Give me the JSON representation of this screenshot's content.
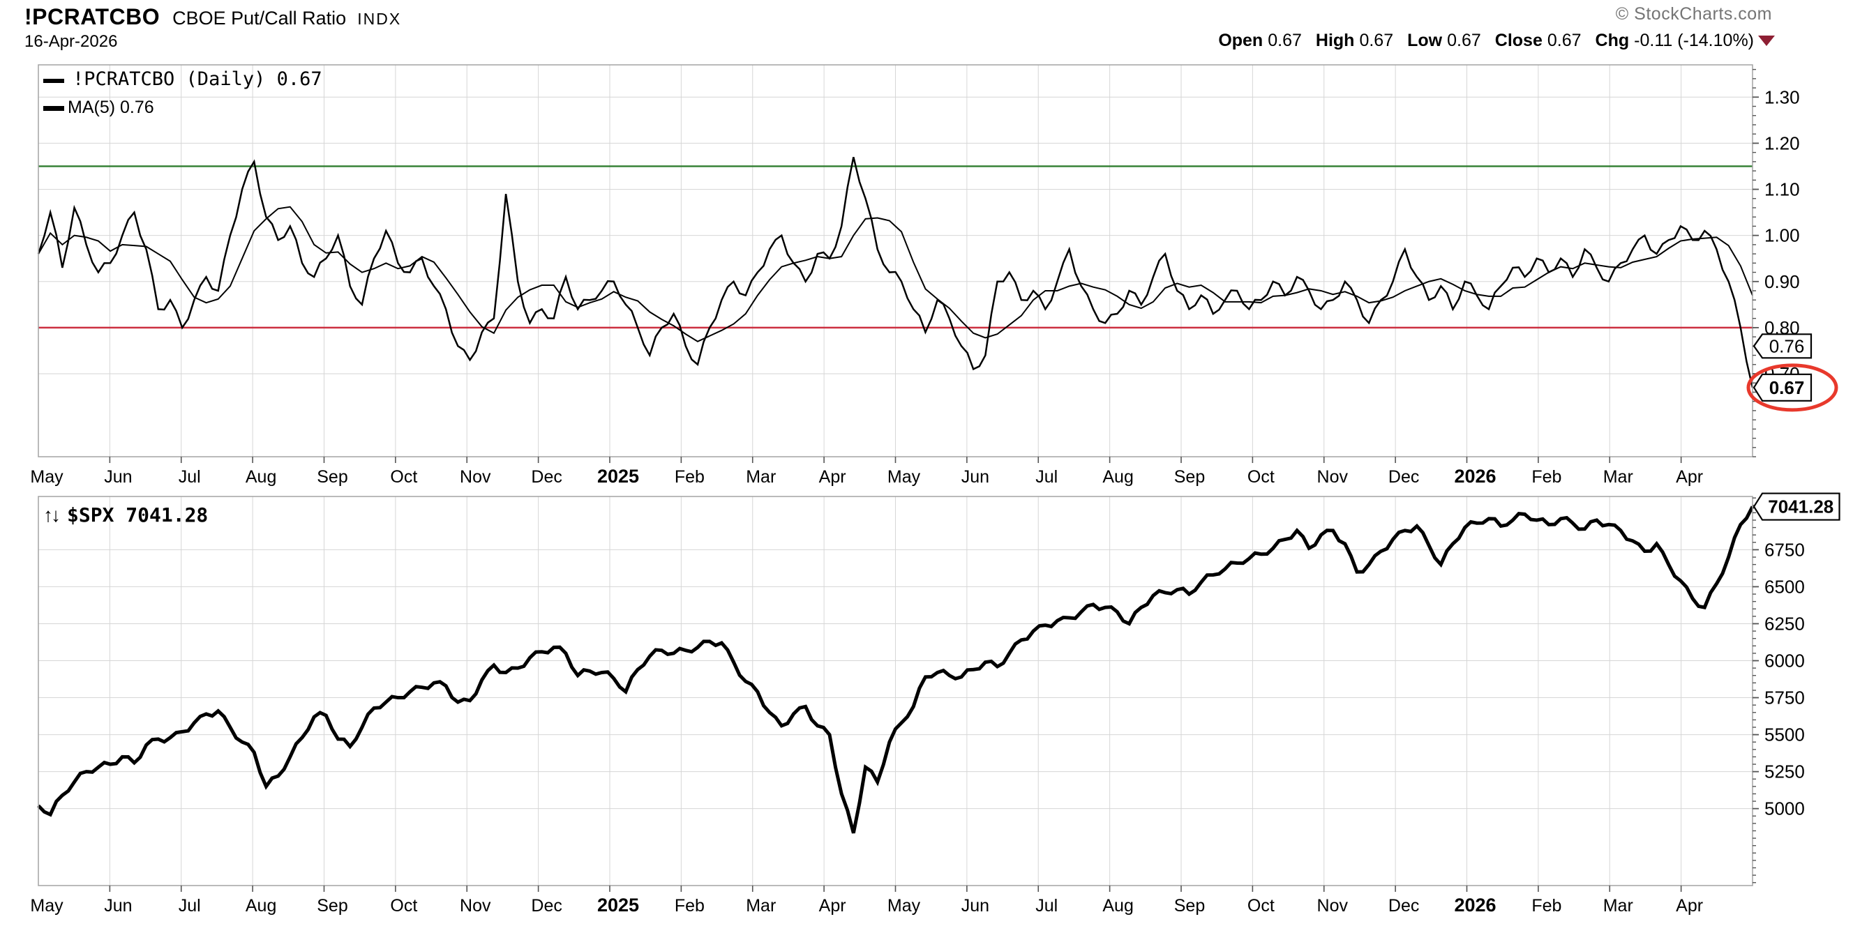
{
  "header": {
    "symbol": "!PCRATCBO",
    "name": "CBOE Put/Call Ratio",
    "exchange": "INDX",
    "date": "16-Apr-2026",
    "watermark": "© StockCharts.com",
    "quote": {
      "open_label": "Open",
      "open_value": "0.67",
      "high_label": "High",
      "high_value": "0.67",
      "low_label": "Low",
      "low_value": "0.67",
      "close_label": "Close",
      "close_value": "0.67",
      "chg_label": "Chg",
      "chg_value": "-0.11 (-14.10%)"
    }
  },
  "colors": {
    "line": "#000000",
    "grid": "#d6d6d6",
    "border": "#a3a3a3",
    "tick": "#555555",
    "overbought_line": "#2e7d2e",
    "oversold_line": "#cc2f3f",
    "annotation_circle": "#e8392c",
    "change_triangle": "#8e1f33",
    "watermark_text": "#757575"
  },
  "chart_data": [
    {
      "type": "line",
      "title": "!PCRATCBO (Daily)",
      "last_value": 0.67,
      "legend": [
        {
          "label": "!PCRATCBO (Daily) 0.67"
        },
        {
          "label": "MA(5) 0.76"
        }
      ],
      "months": [
        "May",
        "Jun",
        "Jul",
        "Aug",
        "Sep",
        "Oct",
        "Nov",
        "Dec",
        "2025",
        "Feb",
        "Mar",
        "Apr",
        "May",
        "Jun",
        "Jul",
        "Aug",
        "Sep",
        "Oct",
        "Nov",
        "Dec",
        "2026",
        "Feb",
        "Mar",
        "Apr"
      ],
      "bold_months": [
        "2025",
        "2026"
      ],
      "ylim": [
        0.52,
        1.37
      ],
      "yticks": [
        0.7,
        0.8,
        0.9,
        1.0,
        1.1,
        1.2,
        1.3
      ],
      "ytick_decimals": 2,
      "minor_step": 0.02,
      "hlines": [
        {
          "value": 1.15,
          "color": "#2e7d2e"
        },
        {
          "value": 0.8,
          "color": "#cc2f3f"
        }
      ],
      "ma_window": 5,
      "ma_value": 0.76,
      "values": [
        0.96,
        1.05,
        0.93,
        1.06,
        0.98,
        0.92,
        0.94,
        1.0,
        1.05,
        0.97,
        0.84,
        0.86,
        0.8,
        0.86,
        0.91,
        0.88,
        1.0,
        1.1,
        1.16,
        1.04,
        0.99,
        1.02,
        0.94,
        0.91,
        0.95,
        1.0,
        0.89,
        0.85,
        0.95,
        1.01,
        0.94,
        0.92,
        0.95,
        0.89,
        0.84,
        0.76,
        0.73,
        0.79,
        0.82,
        1.09,
        0.9,
        0.81,
        0.84,
        0.82,
        0.91,
        0.84,
        0.86,
        0.88,
        0.9,
        0.85,
        0.8,
        0.74,
        0.8,
        0.83,
        0.76,
        0.72,
        0.8,
        0.86,
        0.9,
        0.87,
        0.92,
        0.97,
        1.0,
        0.94,
        0.9,
        0.96,
        0.95,
        1.02,
        1.17,
        1.08,
        0.97,
        0.92,
        0.9,
        0.84,
        0.79,
        0.86,
        0.82,
        0.76,
        0.71,
        0.74,
        0.9,
        0.92,
        0.86,
        0.88,
        0.84,
        0.9,
        0.97,
        0.89,
        0.84,
        0.81,
        0.83,
        0.88,
        0.85,
        0.91,
        0.96,
        0.88,
        0.84,
        0.87,
        0.83,
        0.86,
        0.88,
        0.84,
        0.86,
        0.9,
        0.87,
        0.91,
        0.88,
        0.84,
        0.86,
        0.9,
        0.86,
        0.81,
        0.86,
        0.9,
        0.97,
        0.91,
        0.86,
        0.89,
        0.84,
        0.9,
        0.87,
        0.84,
        0.89,
        0.93,
        0.91,
        0.95,
        0.92,
        0.95,
        0.91,
        0.97,
        0.93,
        0.9,
        0.94,
        0.97,
        1.0,
        0.96,
        0.99,
        1.02,
        0.99,
        1.01,
        0.97,
        0.9,
        0.8,
        0.67
      ],
      "callouts": [
        {
          "value": 0.76,
          "label": "0.76",
          "bold": false,
          "circled": false
        },
        {
          "value": 0.67,
          "label": "0.67",
          "bold": true,
          "circled": true
        }
      ]
    },
    {
      "type": "line",
      "title": "$SPX",
      "last_value": 7041.28,
      "legend_icon": "↑↓",
      "legend_label": "$SPX 7041.28",
      "months": [
        "May",
        "Jun",
        "Jul",
        "Aug",
        "Sep",
        "Oct",
        "Nov",
        "Dec",
        "2025",
        "Feb",
        "Mar",
        "Apr",
        "May",
        "Jun",
        "Jul",
        "Aug",
        "Sep",
        "Oct",
        "Nov",
        "Dec",
        "2026",
        "Feb",
        "Mar",
        "Apr"
      ],
      "bold_months": [
        "2025",
        "2026"
      ],
      "ylim": [
        4480,
        7110
      ],
      "yticks": [
        5000,
        5250,
        5500,
        5750,
        6000,
        6250,
        6500,
        6750
      ],
      "ytick_decimals": 0,
      "minor_step": 50,
      "hlines": [],
      "values": [
        5020,
        4960,
        5090,
        5180,
        5250,
        5280,
        5300,
        5350,
        5310,
        5430,
        5470,
        5480,
        5520,
        5580,
        5640,
        5660,
        5550,
        5450,
        5380,
        5150,
        5220,
        5350,
        5480,
        5620,
        5630,
        5470,
        5420,
        5550,
        5680,
        5720,
        5750,
        5790,
        5820,
        5850,
        5830,
        5720,
        5730,
        5870,
        5970,
        5920,
        5950,
        6020,
        6060,
        6090,
        6050,
        5900,
        5930,
        5920,
        5880,
        5790,
        5940,
        6030,
        6070,
        6050,
        6070,
        6090,
        6130,
        6120,
        5990,
        5860,
        5790,
        5650,
        5560,
        5640,
        5690,
        5560,
        5500,
        5100,
        4835,
        5280,
        5180,
        5450,
        5580,
        5690,
        5890,
        5920,
        5900,
        5890,
        5940,
        5990,
        5960,
        6050,
        6140,
        6200,
        6240,
        6270,
        6290,
        6330,
        6380,
        6360,
        6330,
        6250,
        6360,
        6440,
        6460,
        6480,
        6450,
        6530,
        6580,
        6620,
        6660,
        6690,
        6720,
        6760,
        6820,
        6880,
        6760,
        6850,
        6880,
        6790,
        6600,
        6650,
        6740,
        6820,
        6880,
        6910,
        6780,
        6650,
        6790,
        6900,
        6930,
        6960,
        6910,
        6950,
        6990,
        6950,
        6920,
        6960,
        6930,
        6890,
        6950,
        6920,
        6880,
        6810,
        6740,
        6790,
        6650,
        6540,
        6420,
        6360,
        6520,
        6700,
        6920,
        7041.28
      ],
      "callouts": [
        {
          "value": 7041.28,
          "label": "7041.28",
          "bold": true,
          "circled": false
        }
      ]
    }
  ]
}
